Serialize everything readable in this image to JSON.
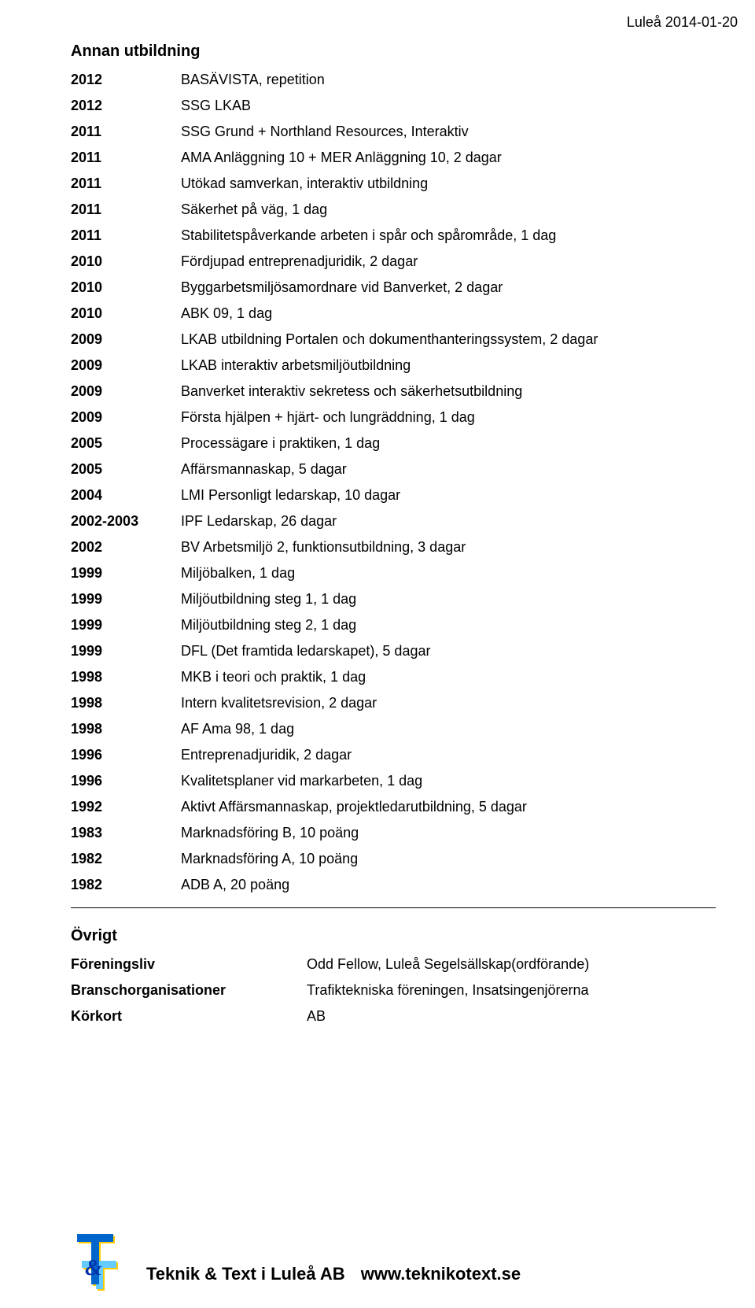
{
  "header_date": "Luleå 2014-01-20",
  "section_title": "Annan utbildning",
  "rows": [
    {
      "year": "2012",
      "desc": "BASÄVISTA, repetition"
    },
    {
      "year": "2012",
      "desc": "SSG LKAB"
    },
    {
      "year": "2011",
      "desc": "SSG Grund + Northland Resources, Interaktiv"
    },
    {
      "year": "2011",
      "desc": "AMA Anläggning 10 + MER Anläggning 10, 2 dagar"
    },
    {
      "year": "2011",
      "desc": "Utökad samverkan, interaktiv utbildning"
    },
    {
      "year": "2011",
      "desc": "Säkerhet på väg, 1 dag"
    },
    {
      "year": "2011",
      "desc": "Stabilitetspåverkande arbeten i spår och spårområde, 1 dag"
    },
    {
      "year": "2010",
      "desc": "Fördjupad entreprenadjuridik, 2 dagar"
    },
    {
      "year": "2010",
      "desc": "Byggarbetsmiljösamordnare vid Banverket, 2 dagar"
    },
    {
      "year": "2010",
      "desc": "ABK 09, 1 dag"
    },
    {
      "year": "2009",
      "desc": "LKAB utbildning Portalen och dokumenthanteringssystem, 2 dagar"
    },
    {
      "year": "2009",
      "desc": "LKAB interaktiv arbetsmiljöutbildning"
    },
    {
      "year": "2009",
      "desc": "Banverket interaktiv sekretess och säkerhetsutbildning"
    },
    {
      "year": "2009",
      "desc": "Första hjälpen + hjärt- och lungräddning, 1 dag"
    },
    {
      "year": "2005",
      "desc": "Processägare i praktiken, 1 dag"
    },
    {
      "year": "2005",
      "desc": "Affärsmannaskap, 5 dagar"
    },
    {
      "year": "2004",
      "desc": "LMI Personligt ledarskap, 10 dagar"
    },
    {
      "year": "2002-2003",
      "desc": "IPF Ledarskap, 26 dagar"
    },
    {
      "year": "2002",
      "desc": "BV Arbetsmiljö 2, funktionsutbildning, 3 dagar"
    },
    {
      "year": "1999",
      "desc": "Miljöbalken, 1 dag"
    },
    {
      "year": "1999",
      "desc": "Miljöutbildning steg 1, 1 dag"
    },
    {
      "year": "1999",
      "desc": "Miljöutbildning steg 2, 1 dag"
    },
    {
      "year": "1999",
      "desc": "DFL (Det framtida ledarskapet), 5 dagar"
    },
    {
      "year": "1998",
      "desc": "MKB i teori och praktik, 1 dag"
    },
    {
      "year": "1998",
      "desc": "Intern kvalitetsrevision, 2 dagar"
    },
    {
      "year": "1998",
      "desc": "AF Ama 98, 1 dag"
    },
    {
      "year": "1996",
      "desc": "Entreprenadjuridik, 2 dagar"
    },
    {
      "year": "1996",
      "desc": "Kvalitetsplaner vid markarbeten, 1 dag"
    },
    {
      "year": "1992",
      "desc": "Aktivt Affärsmannaskap, projektledarutbildning, 5 dagar"
    },
    {
      "year": "1983",
      "desc": "Marknadsföring B, 10 poäng"
    },
    {
      "year": "1982",
      "desc": "Marknadsföring A, 10 poäng"
    },
    {
      "year": "1982",
      "desc": "ADB A, 20 poäng"
    }
  ],
  "ovrigt_title": "Övrigt",
  "ovrigt": [
    {
      "label": "Föreningsliv",
      "value": "Odd Fellow, Luleå Segelsällskap(ordförande)"
    },
    {
      "label": "Branschorganisationer",
      "value": "Trafiktekniska föreningen, Insatsingenjörerna"
    },
    {
      "label": "Körkort",
      "value": "AB"
    }
  ],
  "footer": {
    "company": "Teknik & Text i Luleå AB",
    "url": "www.teknikotext.se"
  },
  "logo": {
    "color_t_vert": "#0066cc",
    "color_t_horz": "#66ccff",
    "color_amp": "#0033aa",
    "shadow": "#ffcc00"
  }
}
